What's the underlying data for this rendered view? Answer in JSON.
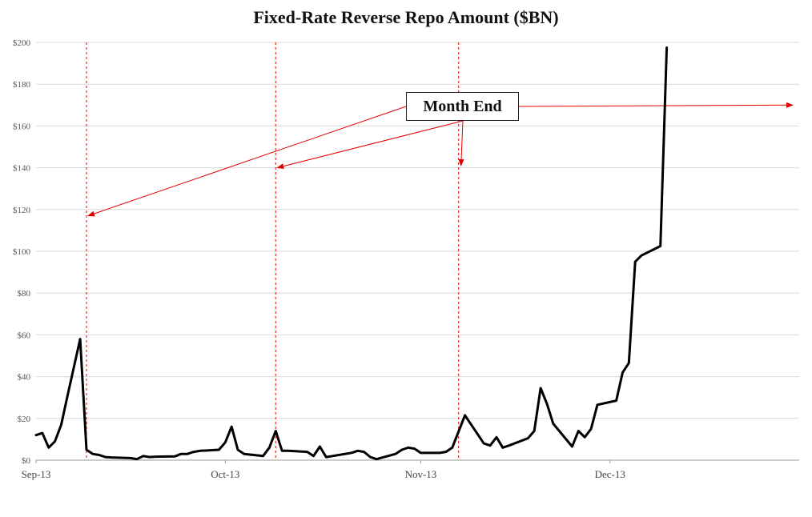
{
  "chart_data": {
    "type": "line",
    "title": "Fixed-Rate Reverse Repo Amount ($BN)",
    "xlabel": "",
    "ylabel": "",
    "ylim": [
      0,
      200
    ],
    "yticks": [
      0,
      20,
      40,
      60,
      80,
      100,
      120,
      140,
      160,
      180,
      200
    ],
    "ytick_labels": [
      "$0",
      "$20",
      "$40",
      "$60",
      "$80",
      "$100",
      "$120",
      "$140",
      "$160",
      "$180",
      "$200"
    ],
    "xlim": [
      "2013-09-01",
      "2013-12-31"
    ],
    "xticks": [
      {
        "date": "2013-09-01",
        "label": "Sep-13"
      },
      {
        "date": "2013-10-01",
        "label": "Oct-13"
      },
      {
        "date": "2013-11-01",
        "label": "Nov-13"
      },
      {
        "date": "2013-12-01",
        "label": "Dec-13"
      }
    ],
    "grid": true,
    "annotation": {
      "text": "Month End",
      "month_end_dates": [
        "2013-09-09",
        "2013-10-09",
        "2013-11-07",
        "2013-12-31"
      ]
    },
    "series": [
      {
        "color": "#000000",
        "points": [
          [
            "2013-09-01",
            12
          ],
          [
            "2013-09-02",
            13
          ],
          [
            "2013-09-03",
            6
          ],
          [
            "2013-09-04",
            9
          ],
          [
            "2013-09-05",
            17
          ],
          [
            "2013-09-06",
            31
          ],
          [
            "2013-09-08",
            58
          ],
          [
            "2013-09-09",
            5
          ],
          [
            "2013-09-10",
            3
          ],
          [
            "2013-09-11",
            2.5
          ],
          [
            "2013-09-12",
            1.5
          ],
          [
            "2013-09-13",
            1.3
          ],
          [
            "2013-09-16",
            1
          ],
          [
            "2013-09-17",
            0.5
          ],
          [
            "2013-09-18",
            2
          ],
          [
            "2013-09-19",
            1.5
          ],
          [
            "2013-09-20",
            1.7
          ],
          [
            "2013-09-23",
            1.8
          ],
          [
            "2013-09-24",
            3
          ],
          [
            "2013-09-25",
            3
          ],
          [
            "2013-09-26",
            4
          ],
          [
            "2013-09-27",
            4.5
          ],
          [
            "2013-09-30",
            5
          ],
          [
            "2013-10-01",
            8.5
          ],
          [
            "2013-10-02",
            16
          ],
          [
            "2013-10-03",
            5
          ],
          [
            "2013-10-04",
            3
          ],
          [
            "2013-10-07",
            2
          ],
          [
            "2013-10-08",
            6
          ],
          [
            "2013-10-09",
            14
          ],
          [
            "2013-10-10",
            4.5
          ],
          [
            "2013-10-11",
            4.5
          ],
          [
            "2013-10-14",
            4
          ],
          [
            "2013-10-15",
            2
          ],
          [
            "2013-10-16",
            6.5
          ],
          [
            "2013-10-17",
            1.5
          ],
          [
            "2013-10-18",
            2
          ],
          [
            "2013-10-21",
            3.5
          ],
          [
            "2013-10-22",
            4.5
          ],
          [
            "2013-10-23",
            4
          ],
          [
            "2013-10-24",
            1.5
          ],
          [
            "2013-10-25",
            0.5
          ],
          [
            "2013-10-28",
            3
          ],
          [
            "2013-10-29",
            5
          ],
          [
            "2013-10-30",
            6
          ],
          [
            "2013-10-31",
            5.5
          ],
          [
            "2013-11-01",
            3.5
          ],
          [
            "2013-11-04",
            3.5
          ],
          [
            "2013-11-05",
            4
          ],
          [
            "2013-11-06",
            6
          ],
          [
            "2013-11-08",
            21.5
          ],
          [
            "2013-11-11",
            8
          ],
          [
            "2013-11-12",
            7
          ],
          [
            "2013-11-13",
            11
          ],
          [
            "2013-11-14",
            6
          ],
          [
            "2013-11-15",
            7
          ],
          [
            "2013-11-18",
            10.5
          ],
          [
            "2013-11-19",
            14
          ],
          [
            "2013-11-20",
            34.5
          ],
          [
            "2013-11-21",
            27
          ],
          [
            "2013-11-22",
            17.5
          ],
          [
            "2013-11-25",
            6.5
          ],
          [
            "2013-11-26",
            14
          ],
          [
            "2013-11-27",
            11
          ],
          [
            "2013-11-28",
            15
          ],
          [
            "2013-11-29",
            26.5
          ],
          [
            "2013-12-02",
            28.5
          ],
          [
            "2013-12-03",
            42
          ],
          [
            "2013-12-04",
            46.5
          ],
          [
            "2013-12-05",
            95
          ],
          [
            "2013-12-06",
            98
          ],
          [
            "2013-12-09",
            102.5
          ],
          [
            "2013-12-10",
            197.5
          ]
        ]
      }
    ]
  }
}
